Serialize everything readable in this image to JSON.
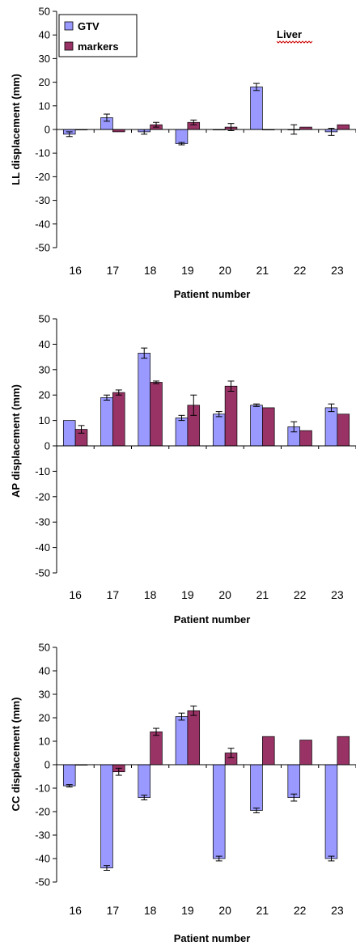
{
  "colors": {
    "gtv_fill": "#9999ff",
    "markers_fill": "#993366",
    "axis": "#000000",
    "background": "#ffffff",
    "annotation_underline": "#cc0000"
  },
  "legend_labels": {
    "gtv": "GTV",
    "markers": "markers"
  },
  "chart_data": [
    {
      "type": "bar",
      "annotation": "Liver",
      "xlabel": "Patient number",
      "ylabel": "LL displacement (mm)",
      "ylim": [
        -50,
        50
      ],
      "yticks": [
        50,
        40,
        30,
        20,
        10,
        0,
        -10,
        -20,
        -30,
        -40,
        -50
      ],
      "grid": false,
      "legend": "top-left",
      "categories": [
        "16",
        "17",
        "18",
        "19",
        "20",
        "21",
        "22",
        "23"
      ],
      "series": [
        {
          "name": "GTV",
          "values": [
            -2,
            5,
            -1,
            -6,
            0,
            18,
            0,
            -1
          ],
          "errors": [
            1,
            1.5,
            1,
            0.5,
            0,
            1.5,
            2,
            1.5
          ]
        },
        {
          "name": "markers",
          "values": [
            0,
            -1,
            2,
            3,
            1,
            0,
            1,
            2
          ],
          "errors": [
            0,
            0,
            1,
            1,
            1.5,
            0,
            0,
            0
          ]
        }
      ]
    },
    {
      "type": "bar",
      "xlabel": "Patient number",
      "ylabel": "AP displacement (mm)",
      "ylim": [
        -50,
        50
      ],
      "yticks": [
        50,
        40,
        30,
        20,
        10,
        0,
        -10,
        -20,
        -30,
        -40,
        -50
      ],
      "grid": false,
      "categories": [
        "16",
        "17",
        "18",
        "19",
        "20",
        "21",
        "22",
        "23"
      ],
      "series": [
        {
          "name": "GTV",
          "values": [
            10,
            19,
            36.5,
            11,
            12.5,
            16,
            7.5,
            15
          ],
          "errors": [
            0,
            1,
            2,
            1,
            1,
            0.5,
            2,
            1.5
          ]
        },
        {
          "name": "markers",
          "values": [
            6.5,
            21,
            25,
            16,
            23.5,
            15,
            6,
            12.5
          ],
          "errors": [
            1.5,
            1,
            0.5,
            4,
            2,
            0,
            0,
            0
          ]
        }
      ]
    },
    {
      "type": "bar",
      "xlabel": "Patient number",
      "ylabel": "CC displacement (mm)",
      "ylim": [
        -50,
        50
      ],
      "yticks": [
        50,
        40,
        30,
        20,
        10,
        0,
        -10,
        -20,
        -30,
        -40,
        -50
      ],
      "grid": false,
      "categories": [
        "16",
        "17",
        "18",
        "19",
        "20",
        "21",
        "22",
        "23"
      ],
      "series": [
        {
          "name": "GTV",
          "values": [
            -9,
            -44,
            -14,
            20.5,
            -40,
            -19.5,
            -14,
            -40
          ],
          "errors": [
            0.5,
            1,
            1,
            1.5,
            1,
            1,
            1.5,
            1
          ]
        },
        {
          "name": "markers",
          "values": [
            0,
            -3,
            14,
            23,
            5,
            12,
            10.5,
            12
          ],
          "errors": [
            0,
            1.5,
            1.5,
            2,
            2,
            0,
            0,
            0
          ]
        }
      ]
    }
  ]
}
